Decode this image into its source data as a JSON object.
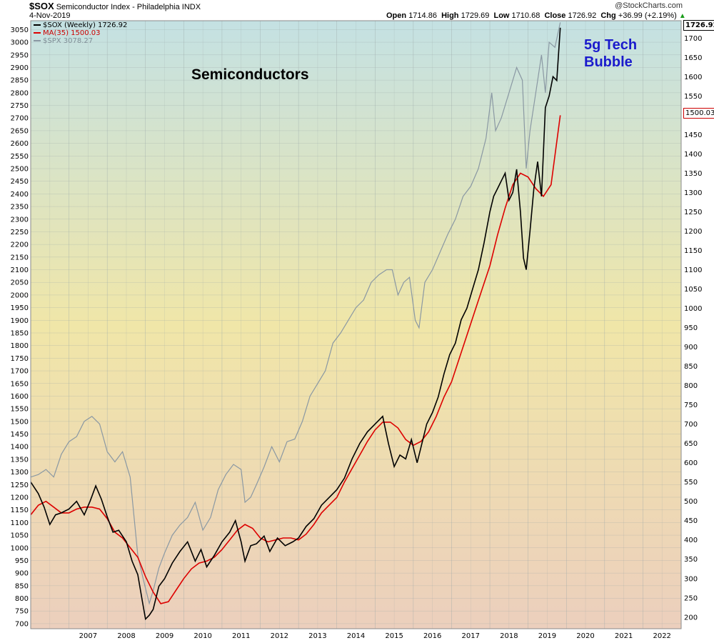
{
  "header": {
    "symbol": "$SOX",
    "name": "Semiconductor Index - Philadelphia INDX",
    "date": "4-Nov-2019",
    "open_label": "Open",
    "open": "1714.86",
    "high_label": "High",
    "high": "1729.69",
    "low_label": "Low",
    "low": "1710.68",
    "close_label": "Close",
    "close": "1726.92",
    "chg_label": "Chg",
    "chg": "+36.99 (+2.19%)",
    "chg_arrow": "▲",
    "credit": "@StockCharts.com"
  },
  "legend": {
    "sox": "$SOX (Weekly) 1726.92",
    "ma": "MA(35) 1500.03",
    "spx": "$SPX 3078.27"
  },
  "annotations": {
    "semiconductors": "Semiconductors",
    "bubble_line1": "5g Tech",
    "bubble_line2": "Bubble"
  },
  "badges": {
    "close": "1726.92",
    "ma": "1500.03"
  },
  "colors": {
    "sox": "#000000",
    "ma": "#dd0000",
    "spx": "#8a98a3",
    "grid": "#9aa6a6",
    "bg_top": "#c4e1e3",
    "bg_mid": "#f0e6a8",
    "bg_bottom": "#eccfbd",
    "annotation_blue": "#1a1acc"
  },
  "chart_data": {
    "type": "line",
    "x_unit": "year",
    "xlim": [
      2006.0,
      2023.0
    ],
    "x_tick_labels": [
      "2007",
      "2008",
      "2009",
      "2010",
      "2011",
      "2012",
      "2013",
      "2014",
      "2015",
      "2016",
      "2017",
      "2018",
      "2019",
      "2020",
      "2021",
      "2022"
    ],
    "left_axis": {
      "ylim": [
        680,
        3085
      ],
      "ticks": [
        700,
        750,
        800,
        850,
        900,
        950,
        1000,
        1050,
        1100,
        1150,
        1200,
        1250,
        1300,
        1350,
        1400,
        1450,
        1500,
        1550,
        1600,
        1650,
        1700,
        1750,
        1800,
        1850,
        1900,
        1950,
        2000,
        2050,
        2100,
        2150,
        2200,
        2250,
        2300,
        2350,
        2400,
        2450,
        2500,
        2550,
        2600,
        2650,
        2700,
        2750,
        2800,
        2850,
        2900,
        2950,
        3000,
        3050
      ]
    },
    "right_axis": {
      "ylim": [
        170,
        1745
      ],
      "ticks": [
        200,
        250,
        300,
        350,
        400,
        450,
        500,
        550,
        600,
        650,
        700,
        750,
        800,
        850,
        900,
        950,
        1000,
        1050,
        1100,
        1150,
        1200,
        1250,
        1300,
        1350,
        1400,
        1450,
        1500,
        1550,
        1600,
        1650,
        1700
      ]
    },
    "grid": true,
    "legend_position": "top-left",
    "series": [
      {
        "name": "$SOX (Weekly) 1726.92",
        "axis": "right",
        "x": [
          2006.0,
          2006.2,
          2006.35,
          2006.5,
          2006.65,
          2006.8,
          2007.0,
          2007.2,
          2007.4,
          2007.55,
          2007.7,
          2007.85,
          2008.0,
          2008.15,
          2008.3,
          2008.5,
          2008.65,
          2008.8,
          2008.92,
          2009.0,
          2009.1,
          2009.2,
          2009.35,
          2009.5,
          2009.7,
          2009.9,
          2010.1,
          2010.3,
          2010.45,
          2010.6,
          2010.8,
          2011.0,
          2011.2,
          2011.35,
          2011.5,
          2011.6,
          2011.75,
          2011.9,
          2012.1,
          2012.25,
          2012.45,
          2012.65,
          2012.85,
          2013.0,
          2013.2,
          2013.4,
          2013.6,
          2013.8,
          2014.0,
          2014.2,
          2014.4,
          2014.6,
          2014.8,
          2015.0,
          2015.2,
          2015.35,
          2015.5,
          2015.65,
          2015.8,
          2015.95,
          2016.1,
          2016.2,
          2016.35,
          2016.5,
          2016.65,
          2016.8,
          2016.95,
          2017.1,
          2017.25,
          2017.4,
          2017.55,
          2017.7,
          2017.85,
          2018.0,
          2018.1,
          2018.2,
          2018.3,
          2018.4,
          2018.5,
          2018.6,
          2018.7,
          2018.8,
          2018.88,
          2018.95,
          2019.05,
          2019.15,
          2019.25,
          2019.35,
          2019.45,
          2019.55,
          2019.65,
          2019.75,
          2019.84
        ],
        "values": [
          550,
          520,
          485,
          440,
          465,
          470,
          480,
          500,
          465,
          500,
          540,
          505,
          460,
          420,
          425,
          395,
          345,
          310,
          240,
          195,
          205,
          220,
          280,
          300,
          340,
          370,
          395,
          345,
          375,
          330,
          360,
          395,
          420,
          450,
          395,
          345,
          385,
          390,
          410,
          370,
          405,
          385,
          395,
          405,
          435,
          455,
          490,
          510,
          530,
          560,
          610,
          650,
          680,
          700,
          720,
          650,
          590,
          620,
          610,
          660,
          600,
          640,
          700,
          730,
          770,
          830,
          880,
          910,
          970,
          1000,
          1050,
          1100,
          1170,
          1250,
          1290,
          1310,
          1330,
          1350,
          1280,
          1300,
          1360,
          1250,
          1130,
          1100,
          1200,
          1310,
          1380,
          1290,
          1520,
          1550,
          1600,
          1590,
          1726.92
        ]
      },
      {
        "name": "MA(35) 1500.03",
        "axis": "right",
        "x": [
          2006.0,
          2006.2,
          2006.4,
          2006.6,
          2006.8,
          2007.0,
          2007.2,
          2007.4,
          2007.6,
          2007.8,
          2008.0,
          2008.2,
          2008.4,
          2008.6,
          2008.8,
          2009.0,
          2009.2,
          2009.4,
          2009.6,
          2009.8,
          2010.0,
          2010.2,
          2010.4,
          2010.6,
          2010.8,
          2011.0,
          2011.2,
          2011.4,
          2011.6,
          2011.8,
          2012.0,
          2012.2,
          2012.4,
          2012.6,
          2012.8,
          2013.0,
          2013.2,
          2013.4,
          2013.6,
          2013.8,
          2014.0,
          2014.2,
          2014.4,
          2014.6,
          2014.8,
          2015.0,
          2015.2,
          2015.4,
          2015.6,
          2015.8,
          2016.0,
          2016.2,
          2016.4,
          2016.6,
          2016.8,
          2017.0,
          2017.2,
          2017.4,
          2017.6,
          2017.8,
          2018.0,
          2018.2,
          2018.4,
          2018.6,
          2018.8,
          2019.0,
          2019.2,
          2019.4,
          2019.6,
          2019.84
        ],
        "values": [
          465,
          490,
          500,
          485,
          470,
          470,
          480,
          485,
          485,
          480,
          455,
          420,
          405,
          380,
          355,
          305,
          265,
          235,
          240,
          270,
          300,
          325,
          340,
          345,
          355,
          375,
          400,
          425,
          440,
          430,
          405,
          395,
          400,
          405,
          405,
          400,
          415,
          440,
          470,
          490,
          510,
          550,
          585,
          620,
          655,
          685,
          705,
          705,
          690,
          660,
          645,
          655,
          680,
          720,
          770,
          810,
          870,
          930,
          990,
          1050,
          1110,
          1190,
          1260,
          1320,
          1350,
          1340,
          1310,
          1290,
          1320,
          1500.03
        ]
      },
      {
        "name": "$SPX 3078.27",
        "axis": "left",
        "x": [
          2006.0,
          2006.2,
          2006.4,
          2006.6,
          2006.8,
          2007.0,
          2007.2,
          2007.4,
          2007.6,
          2007.8,
          2008.0,
          2008.2,
          2008.4,
          2008.6,
          2008.8,
          2008.95,
          2009.1,
          2009.2,
          2009.35,
          2009.5,
          2009.7,
          2009.9,
          2010.1,
          2010.3,
          2010.5,
          2010.7,
          2010.9,
          2011.1,
          2011.3,
          2011.5,
          2011.6,
          2011.75,
          2011.9,
          2012.1,
          2012.3,
          2012.5,
          2012.7,
          2012.9,
          2013.1,
          2013.3,
          2013.5,
          2013.7,
          2013.9,
          2014.1,
          2014.3,
          2014.5,
          2014.7,
          2014.9,
          2015.1,
          2015.3,
          2015.45,
          2015.6,
          2015.75,
          2015.9,
          2016.05,
          2016.15,
          2016.3,
          2016.5,
          2016.7,
          2016.9,
          2017.1,
          2017.3,
          2017.5,
          2017.7,
          2017.9,
          2018.05,
          2018.15,
          2018.3,
          2018.5,
          2018.7,
          2018.85,
          2018.95,
          2019.05,
          2019.2,
          2019.35,
          2019.45,
          2019.55,
          2019.7,
          2019.84
        ],
        "values": [
          1280,
          1290,
          1310,
          1280,
          1370,
          1420,
          1440,
          1500,
          1520,
          1490,
          1380,
          1340,
          1380,
          1280,
          970,
          870,
          780,
          830,
          920,
          980,
          1050,
          1090,
          1120,
          1180,
          1070,
          1120,
          1230,
          1290,
          1330,
          1310,
          1180,
          1200,
          1250,
          1320,
          1400,
          1340,
          1420,
          1430,
          1500,
          1600,
          1650,
          1700,
          1810,
          1850,
          1900,
          1950,
          1980,
          2050,
          2080,
          2100,
          2100,
          2000,
          2050,
          2070,
          1900,
          1870,
          2050,
          2100,
          2170,
          2240,
          2300,
          2390,
          2430,
          2500,
          2620,
          2800,
          2650,
          2700,
          2800,
          2900,
          2850,
          2500,
          2650,
          2800,
          2950,
          2800,
          3000,
          2980,
          3078.27
        ]
      }
    ]
  }
}
